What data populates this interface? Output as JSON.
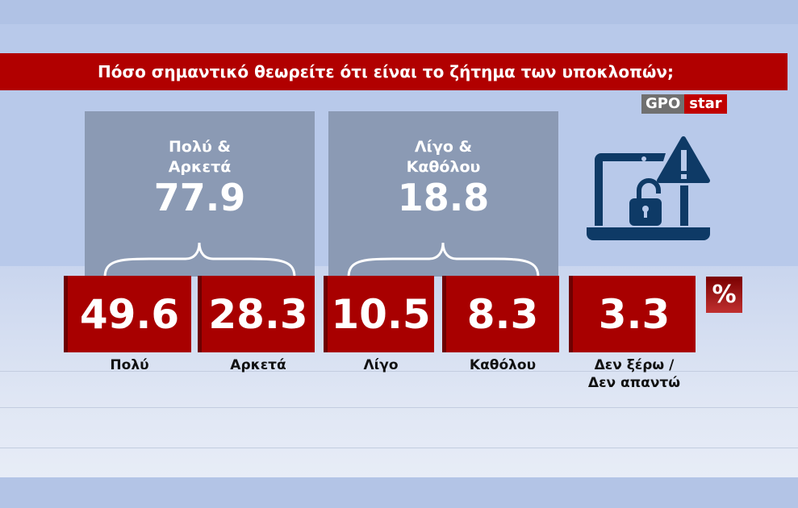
{
  "title": "Πόσο σημαντικό θεωρείτε ότι είναι το ζήτημα των υποκλοπών;",
  "logo": {
    "left": "GPO",
    "right": "star"
  },
  "unit": "%",
  "icon": "laptop-unlocked-warning-icon",
  "colors": {
    "accent": "#b10000",
    "panel": "#8b9ab4",
    "background": "#b8c9ea",
    "icon": "#0e3a66"
  },
  "groups": [
    {
      "label": "Πολύ &\nΑρκετά",
      "value": "77.9"
    },
    {
      "label": "Λίγο &\nΚαθόλου",
      "value": "18.8"
    }
  ],
  "chart_data": {
    "type": "table",
    "title": "Πόσο σημαντικό θεωρείτε ότι είναι το ζήτημα των υποκλοπών;",
    "categories": [
      "Πολύ",
      "Αρκετά",
      "Λίγο",
      "Καθόλου",
      "Δεν ξέρω /\nΔεν απαντώ"
    ],
    "values": [
      49.6,
      28.3,
      10.5,
      8.3,
      3.3
    ],
    "value_labels": [
      "49.6",
      "28.3",
      "10.5",
      "8.3",
      "3.3"
    ],
    "unit": "%"
  }
}
